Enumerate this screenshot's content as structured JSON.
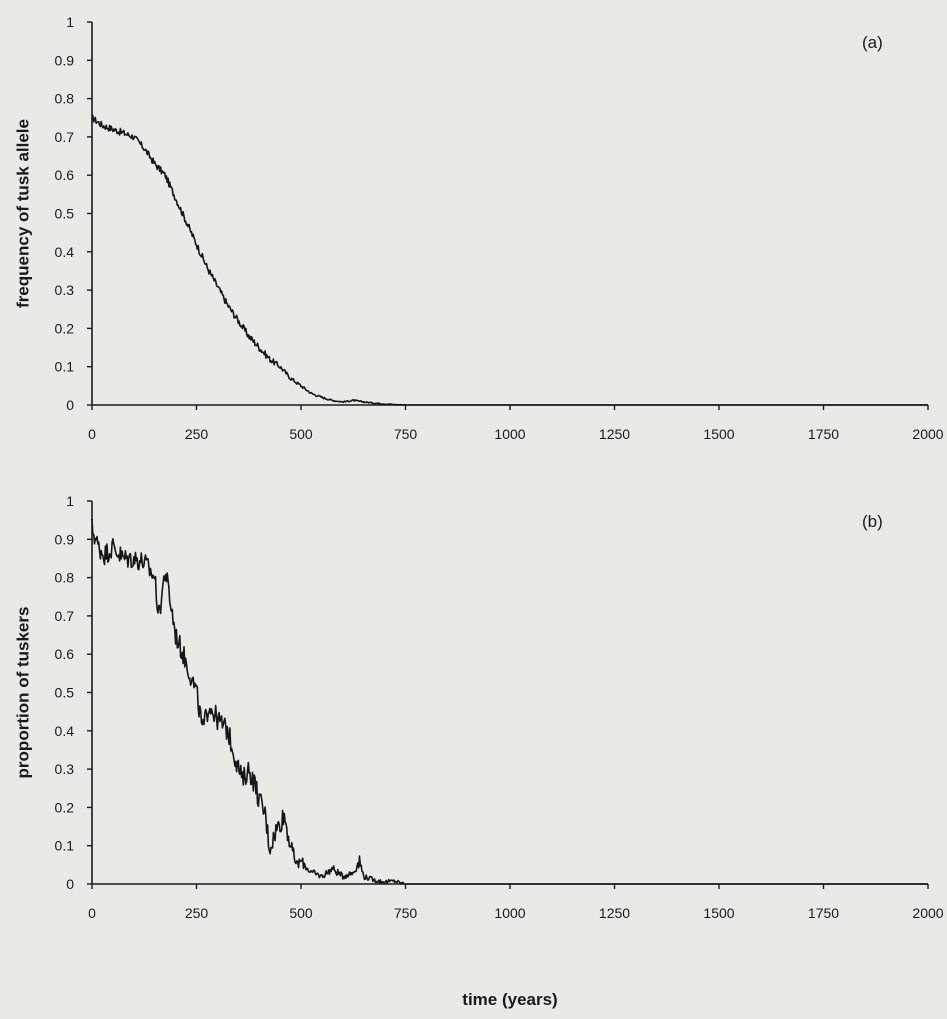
{
  "colors": {
    "background": "#e9e9e6",
    "line": "#161616",
    "axis": "#1a1a1a"
  },
  "chart_data": [
    {
      "type": "line",
      "panel_label": "(a)",
      "title": "",
      "xlabel": "",
      "ylabel": "frequency of tusk allele",
      "xlim": [
        0,
        2000
      ],
      "ylim": [
        0,
        1
      ],
      "x_ticks": [
        "0",
        "250",
        "500",
        "750",
        "1000",
        "1250",
        "1500",
        "1750",
        "2000"
      ],
      "y_ticks": [
        "0",
        "0.1",
        "0.2",
        "0.3",
        "0.4",
        "0.5",
        "0.6",
        "0.7",
        "0.8",
        "0.9",
        "1"
      ],
      "grid": false,
      "noise": 0.009,
      "series": [
        {
          "x": [
            0,
            25,
            50,
            75,
            100,
            125,
            150,
            175,
            200,
            225,
            250,
            275,
            300,
            325,
            350,
            375,
            400,
            425,
            450,
            475,
            500,
            525,
            550,
            575,
            600,
            625,
            650,
            675,
            700,
            725,
            750,
            800,
            1000,
            1250,
            1500,
            1750,
            2000
          ],
          "values": [
            0.75,
            0.73,
            0.72,
            0.71,
            0.7,
            0.67,
            0.63,
            0.6,
            0.54,
            0.48,
            0.42,
            0.36,
            0.31,
            0.26,
            0.22,
            0.18,
            0.15,
            0.12,
            0.1,
            0.07,
            0.05,
            0.03,
            0.02,
            0.012,
            0.008,
            0.012,
            0.008,
            0.005,
            0.003,
            0.001,
            0,
            0,
            0,
            0,
            0,
            0,
            0
          ]
        }
      ]
    },
    {
      "type": "line",
      "panel_label": "(b)",
      "title": "",
      "xlabel": "time (years)",
      "ylabel": "proportion of tuskers",
      "xlim": [
        0,
        2000
      ],
      "ylim": [
        0,
        1
      ],
      "x_ticks": [
        "0",
        "250",
        "500",
        "750",
        "1000",
        "1250",
        "1500",
        "1750",
        "2000"
      ],
      "y_ticks": [
        "0",
        "0.1",
        "0.2",
        "0.3",
        "0.4",
        "0.5",
        "0.6",
        "0.7",
        "0.8",
        "0.9",
        "1"
      ],
      "grid": false,
      "noise": 0.028,
      "series": [
        {
          "x": [
            0,
            15,
            30,
            50,
            75,
            100,
            125,
            150,
            160,
            175,
            190,
            200,
            225,
            250,
            265,
            280,
            300,
            325,
            340,
            360,
            375,
            390,
            400,
            415,
            425,
            440,
            460,
            475,
            490,
            500,
            525,
            550,
            575,
            600,
            625,
            640,
            650,
            675,
            700,
            725,
            740,
            750,
            800,
            1000,
            1250,
            1500,
            1750,
            2000
          ],
          "values": [
            0.93,
            0.88,
            0.86,
            0.88,
            0.85,
            0.85,
            0.84,
            0.8,
            0.7,
            0.82,
            0.72,
            0.65,
            0.58,
            0.5,
            0.4,
            0.47,
            0.43,
            0.4,
            0.34,
            0.27,
            0.3,
            0.26,
            0.22,
            0.18,
            0.09,
            0.14,
            0.18,
            0.1,
            0.05,
            0.06,
            0.03,
            0.02,
            0.04,
            0.02,
            0.03,
            0.06,
            0.02,
            0.01,
            0.005,
            0.008,
            0.002,
            0,
            0,
            0,
            0,
            0,
            0,
            0
          ]
        }
      ]
    }
  ]
}
